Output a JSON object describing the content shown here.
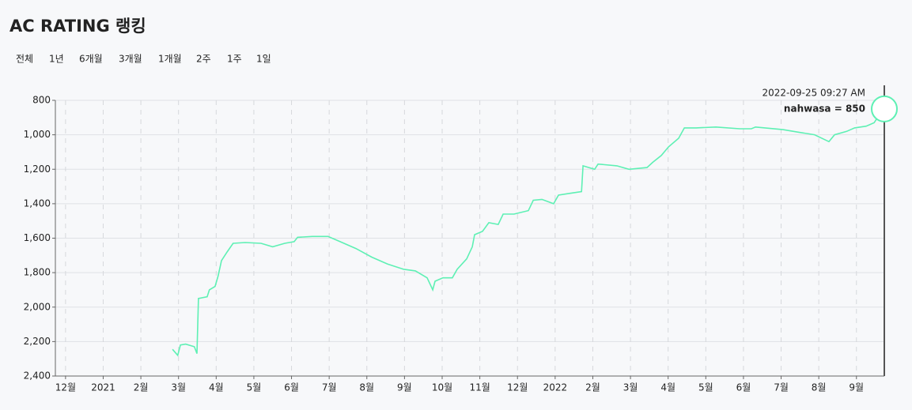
{
  "header": {
    "title": "AC RATING 랭킹",
    "tabs": [
      "전체",
      "1년",
      "6개월",
      "3개월",
      "1개월",
      "2주",
      "1주",
      "1일"
    ]
  },
  "chart_data": {
    "type": "line",
    "series": [
      {
        "name": "nahwasa",
        "color": "#5ef0b4",
        "x": [
          2.84,
          2.98,
          3.05,
          3.19,
          3.42,
          3.49,
          3.53,
          3.76,
          3.82,
          3.97,
          4.05,
          4.14,
          4.29,
          4.45,
          4.77,
          5.19,
          5.5,
          5.82,
          6.07,
          6.16,
          6.55,
          6.97,
          7.29,
          7.71,
          8.13,
          8.55,
          8.97,
          9.29,
          9.6,
          9.75,
          9.81,
          10.02,
          10.27,
          10.4,
          10.65,
          10.8,
          10.86,
          11.07,
          11.24,
          11.49,
          11.62,
          11.91,
          12.29,
          12.42,
          12.65,
          12.96,
          13.09,
          13.38,
          13.7,
          13.74,
          14.05,
          14.14,
          14.64,
          14.96,
          15.44,
          15.59,
          15.82,
          16.01,
          16.28,
          16.43,
          16.74,
          17.27,
          17.9,
          18.21,
          18.32,
          19.05,
          19.47,
          19.89,
          20.27,
          20.42,
          20.74,
          20.95,
          21.26,
          21.47,
          21.62,
          21.74
        ],
        "values": [
          2245,
          2280,
          2220,
          2215,
          2230,
          2270,
          1950,
          1940,
          1900,
          1880,
          1820,
          1730,
          1680,
          1630,
          1625,
          1630,
          1650,
          1630,
          1620,
          1595,
          1590,
          1590,
          1620,
          1660,
          1710,
          1750,
          1780,
          1790,
          1830,
          1900,
          1850,
          1830,
          1830,
          1780,
          1720,
          1650,
          1580,
          1560,
          1510,
          1520,
          1460,
          1460,
          1440,
          1380,
          1375,
          1400,
          1350,
          1340,
          1330,
          1180,
          1200,
          1170,
          1180,
          1200,
          1190,
          1160,
          1120,
          1070,
          1020,
          960,
          960,
          955,
          965,
          965,
          955,
          970,
          985,
          1000,
          1040,
          1000,
          980,
          960,
          950,
          930,
          880,
          850
        ]
      }
    ],
    "xlim": [
      -0.27,
      21.74
    ],
    "xticks": [
      {
        "value": 0,
        "label": "12월"
      },
      {
        "value": 1,
        "label": "2021"
      },
      {
        "value": 2,
        "label": "2월"
      },
      {
        "value": 3,
        "label": "3월"
      },
      {
        "value": 4,
        "label": "4월"
      },
      {
        "value": 5,
        "label": "5월"
      },
      {
        "value": 6,
        "label": "6월"
      },
      {
        "value": 7,
        "label": "7월"
      },
      {
        "value": 8,
        "label": "8월"
      },
      {
        "value": 9,
        "label": "9월"
      },
      {
        "value": 10,
        "label": "10월"
      },
      {
        "value": 11,
        "label": "11월"
      },
      {
        "value": 12,
        "label": "12월"
      },
      {
        "value": 13,
        "label": "2022"
      },
      {
        "value": 14,
        "label": "2월"
      },
      {
        "value": 15,
        "label": "3월"
      },
      {
        "value": 16,
        "label": "4월"
      },
      {
        "value": 17,
        "label": "5월"
      },
      {
        "value": 18,
        "label": "6월"
      },
      {
        "value": 19,
        "label": "7월"
      },
      {
        "value": 20,
        "label": "8월"
      },
      {
        "value": 21,
        "label": "9월"
      }
    ],
    "ylim": [
      800,
      2400
    ],
    "y_inverted": true,
    "yticks": [
      800,
      {
        "value": 1000,
        "label": "1,000"
      },
      {
        "value": 1200,
        "label": "1,200"
      },
      {
        "value": 1400,
        "label": "1,400"
      },
      {
        "value": 1600,
        "label": "1,600"
      },
      {
        "value": 1800,
        "label": "1,800"
      },
      {
        "value": 2000,
        "label": "2,000"
      },
      {
        "value": 2200,
        "label": "2,200"
      },
      {
        "value": 2400,
        "label": "2,400"
      }
    ],
    "grid": true,
    "tooltip": {
      "date": "2022-09-25 09:27 AM",
      "text": "nahwasa = 850"
    }
  }
}
